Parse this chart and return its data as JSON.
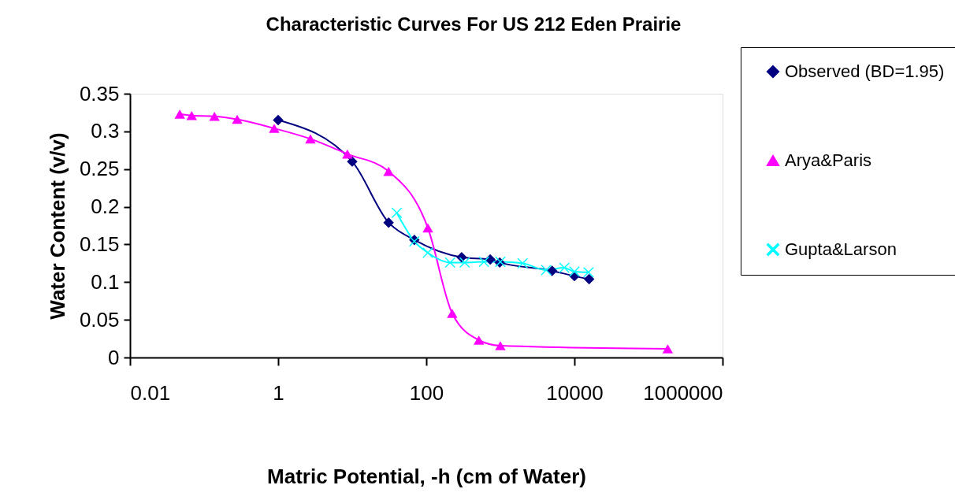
{
  "chart_data": {
    "type": "line",
    "title": "Characteristic Curves For US 212 Eden Prairie",
    "xlabel": "Matric Potential,  -h (cm of Water)",
    "ylabel": "Water Content (v/v)",
    "log": "x",
    "xlim": [
      0.01,
      1000000
    ],
    "xticks": [
      0.01,
      1,
      100,
      10000,
      1000000
    ],
    "ylim": [
      0,
      0.35
    ],
    "yticks": [
      0,
      0.05,
      0.1,
      0.15,
      0.2,
      0.25,
      0.3,
      0.35
    ],
    "grid": false,
    "legend": "right",
    "series": [
      {
        "name": "Observed (BD=1.95)",
        "color": "#000080",
        "marker": "diamond",
        "x": [
          1,
          10,
          31,
          69,
          300,
          730,
          980,
          5000,
          10000,
          15800
        ],
        "values": [
          0.315,
          0.26,
          0.179,
          0.156,
          0.133,
          0.13,
          0.126,
          0.115,
          0.108,
          0.104
        ]
      },
      {
        "name": "Arya&Paris",
        "color": "#ff00ff",
        "marker": "triangle",
        "x": [
          0.047,
          0.068,
          0.138,
          0.28,
          0.885,
          2.73,
          8.6,
          31,
          105,
          224,
          513,
          1000,
          182000
        ],
        "values": [
          0.323,
          0.321,
          0.32,
          0.316,
          0.304,
          0.29,
          0.27,
          0.247,
          0.172,
          0.0585,
          0.023,
          0.0157,
          0.0115
        ]
      },
      {
        "name": "Gupta&Larson",
        "color": "#00ffff",
        "marker": "cross",
        "x": [
          40,
          69,
          105,
          210,
          330,
          600,
          1000,
          2000,
          4150,
          7300,
          10000,
          15500
        ],
        "values": [
          0.192,
          0.154,
          0.139,
          0.126,
          0.126,
          0.127,
          0.127,
          0.125,
          0.116,
          0.119,
          0.114,
          0.113
        ]
      }
    ]
  }
}
